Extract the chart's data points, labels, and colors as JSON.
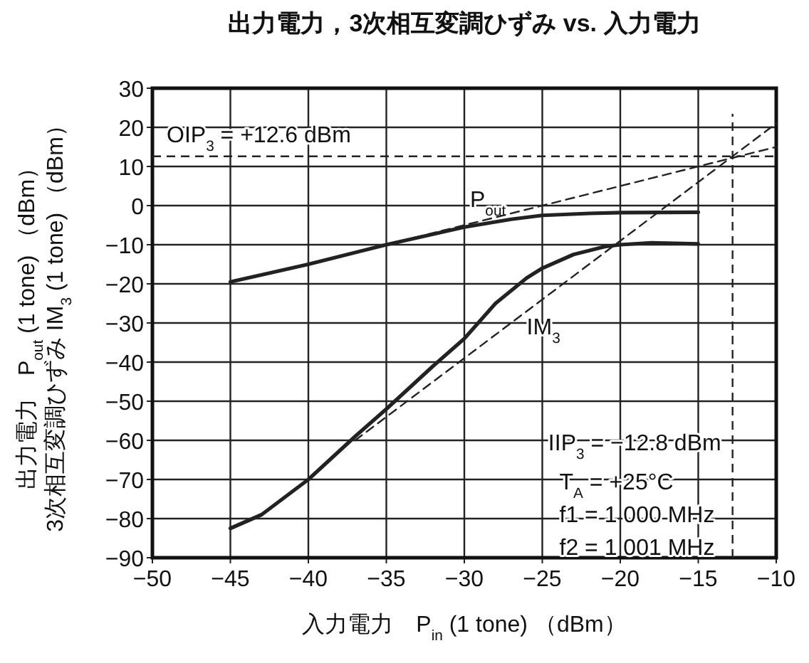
{
  "chart_data": {
    "type": "line",
    "title": "出力電力，3次相互変調ひずみ vs. 入力電力",
    "xlabel": "入力電力　P$_{in}$ (1 tone) （dBm）",
    "ylabel": "出力電力　P$_{out}$ (1 tone) （dBm）\n3次相互変調ひずみ IM$_{3}$ (1 tone) （dBm）",
    "series": [
      {
        "name": "P$_{out}$",
        "color": "#222222",
        "x": [
          -45,
          -40,
          -35,
          -30,
          -27,
          -25,
          -22,
          -20,
          -15
        ],
        "values": [
          -19.5,
          -15,
          -10,
          -5.5,
          -3.5,
          -2.5,
          -2,
          -1.8,
          -1.7
        ]
      },
      {
        "name": "IM$_{3}$",
        "color": "#222222",
        "x": [
          -45,
          -43,
          -40,
          -37,
          -35,
          -32,
          -30,
          -28,
          -26,
          -25,
          -23,
          -21,
          -20,
          -18,
          -15
        ],
        "values": [
          -82.5,
          -79,
          -70,
          -59,
          -52,
          -41,
          -34,
          -25,
          -18.5,
          -16,
          -12.5,
          -10.5,
          -10,
          -9.5,
          -9.8
        ]
      },
      {
        "color": "#222222",
        "line_style": "dashed",
        "x": [
          -35,
          -10
        ],
        "values": [
          -10,
          15
        ]
      },
      {
        "color": "#222222",
        "line_style": "dashed",
        "x": [
          -37,
          -10
        ],
        "values": [
          -60,
          21
        ]
      }
    ],
    "ref_lines": [
      {
        "axis": "y",
        "value": 12.6,
        "label": "OIP$_{3}$ = +12.6 dBm",
        "line_style": "dashed"
      },
      {
        "axis": "x",
        "value": -12.8,
        "label": "IIP$_{3}$ = −12.8 dBm",
        "line_style": "dashed"
      }
    ],
    "annotations": [
      "T$_{A}$ = +25°C\nf1 = 1 000 MHz\nf2 = 1 001 MHz"
    ],
    "xlim": [
      -50,
      -10
    ],
    "xticks": [
      -50,
      -45,
      -40,
      -35,
      -30,
      -25,
      -20,
      -15,
      -10
    ],
    "ylim": [
      -90,
      30
    ],
    "yticks": [
      -90,
      -80,
      -70,
      -60,
      -50,
      -40,
      -30,
      -20,
      -10,
      0,
      10,
      20,
      30
    ],
    "grid": true,
    "marker": "none"
  }
}
